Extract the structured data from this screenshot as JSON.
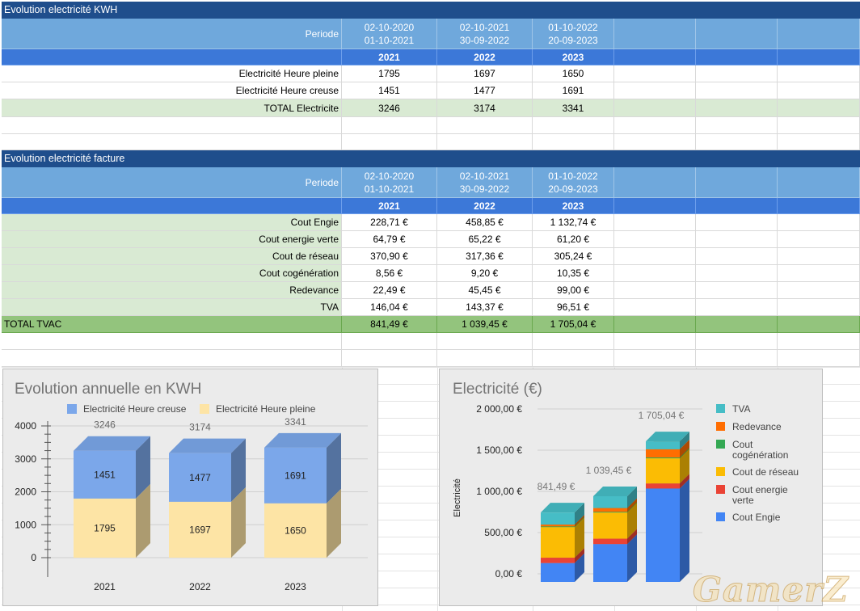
{
  "table_kwh": {
    "title": "Evolution electricité KWH",
    "periode_label": "Periode",
    "periods": [
      {
        "start": "02-10-2020",
        "end": "01-10-2021"
      },
      {
        "start": "02-10-2021",
        "end": "30-09-2022"
      },
      {
        "start": "01-10-2022",
        "end": "20-09-2023"
      }
    ],
    "years": [
      "2021",
      "2022",
      "2023"
    ],
    "rows": [
      {
        "label": "Electricité Heure pleine",
        "values": [
          "1795",
          "1697",
          "1650"
        ]
      },
      {
        "label": "Electricité Heure creuse",
        "values": [
          "1451",
          "1477",
          "1691"
        ]
      },
      {
        "label": "TOTAL Electricite",
        "values": [
          "3246",
          "3174",
          "3341"
        ]
      }
    ]
  },
  "table_facture": {
    "title": "Evolution electricité facture",
    "periode_label": "Periode",
    "periods": [
      {
        "start": "02-10-2020",
        "end": "01-10-2021"
      },
      {
        "start": "02-10-2021",
        "end": "30-09-2022"
      },
      {
        "start": "01-10-2022",
        "end": "20-09-2023"
      }
    ],
    "years": [
      "2021",
      "2022",
      "2023"
    ],
    "rows": [
      {
        "label": "Cout  Engie",
        "values": [
          "228,71 €",
          "458,85 €",
          "1 132,74 €"
        ]
      },
      {
        "label": "Cout energie verte",
        "values": [
          "64,79 €",
          "65,22 €",
          "61,20 €"
        ]
      },
      {
        "label": "Cout de réseau",
        "values": [
          "370,90 €",
          "317,36 €",
          "305,24 €"
        ]
      },
      {
        "label": "Cout cogénération",
        "values": [
          "8,56 €",
          "9,20 €",
          "10,35 €"
        ]
      },
      {
        "label": "Redevance",
        "values": [
          "22,49 €",
          "45,45 €",
          "99,00 €"
        ]
      },
      {
        "label": "TVA",
        "values": [
          "146,04 €",
          "143,37 €",
          "96,51 €"
        ]
      }
    ],
    "total": {
      "label": "TOTAL TVAC",
      "values": [
        "841,49 €",
        "1 039,45 €",
        "1 705,04 €"
      ]
    }
  },
  "chart_data": [
    {
      "type": "bar",
      "stacked": true,
      "three_d": true,
      "title": "Evolution annuelle en KWH",
      "categories": [
        "2021",
        "2022",
        "2023"
      ],
      "series": [
        {
          "name": "Electricité Heure pleine",
          "values": [
            1795,
            1697,
            1650
          ],
          "color": "#fde4a5"
        },
        {
          "name": "Electricité Heure creuse",
          "values": [
            1451,
            1477,
            1691
          ],
          "color": "#7ba7ea"
        }
      ],
      "legend_order": [
        "Electricité Heure creuse",
        "Electricité Heure pleine"
      ],
      "totals": [
        3246,
        3174,
        3341
      ],
      "yticks": [
        "4000",
        "3000",
        "2000",
        "1000",
        "0"
      ],
      "ylim": [
        0,
        4000
      ],
      "legend_position": "top"
    },
    {
      "type": "bar",
      "stacked": true,
      "three_d": true,
      "title": "Electricité  (€)",
      "ylabel": "Electricité",
      "categories": [
        "2021",
        "2022",
        "2023"
      ],
      "series": [
        {
          "name": "Cout  Engie",
          "values": [
            228.71,
            458.85,
            1132.74
          ],
          "color": "#4285f4"
        },
        {
          "name": "Cout energie verte",
          "values": [
            64.79,
            65.22,
            61.2
          ],
          "color": "#ea4335"
        },
        {
          "name": "Cout de réseau",
          "values": [
            370.9,
            317.36,
            305.24
          ],
          "color": "#fbbc04"
        },
        {
          "name": "Cout cogénération",
          "values": [
            8.56,
            9.2,
            10.35
          ],
          "color": "#34a853"
        },
        {
          "name": "Redevance",
          "values": [
            22.49,
            45.45,
            99.0
          ],
          "color": "#ff6d01"
        },
        {
          "name": "TVA",
          "values": [
            146.04,
            143.37,
            96.51
          ],
          "color": "#46bdc6"
        }
      ],
      "total_labels": [
        "841,49 €",
        "1 039,45 €",
        "1 705,04 €"
      ],
      "yticks": [
        "2 000,00 €",
        "1 500,00 €",
        "1 000,00 €",
        "500,00 €",
        "0,00 €"
      ],
      "ylim": [
        0,
        2000
      ],
      "legend_position": "right"
    }
  ],
  "watermark": "GamerZ"
}
